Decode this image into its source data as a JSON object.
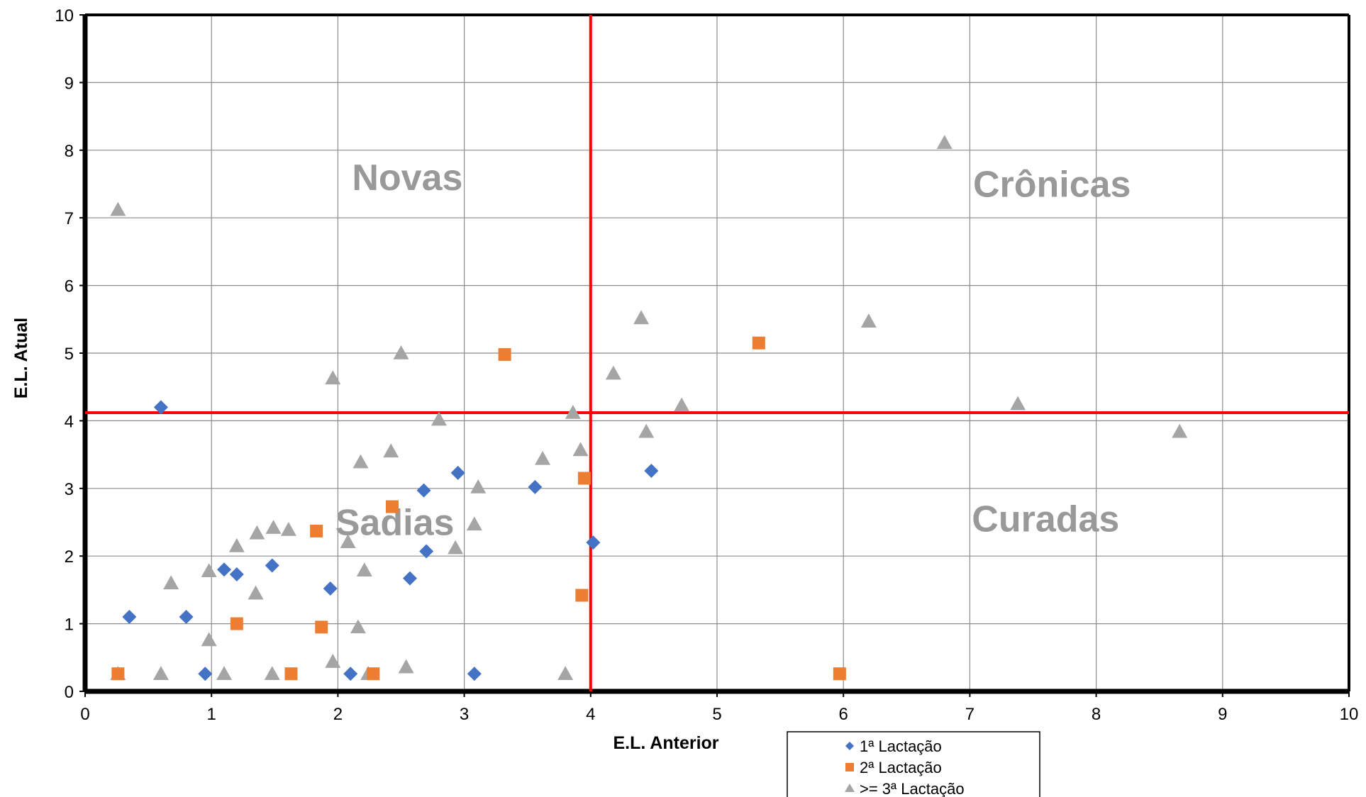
{
  "chart_data": {
    "type": "scatter",
    "title": "",
    "xlabel": "E.L. Anterior",
    "ylabel": "E.L. Atual",
    "xlim": [
      0,
      10
    ],
    "ylim": [
      0,
      10
    ],
    "x_ticks": [
      "0",
      "1",
      "2",
      "3",
      "4",
      "5",
      "6",
      "7",
      "8",
      "9",
      "10"
    ],
    "y_ticks": [
      "0",
      "1",
      "2",
      "3",
      "4",
      "5",
      "6",
      "7",
      "8",
      "9",
      "10"
    ],
    "grid": true,
    "legend_position": "bottom-center",
    "reference_lines": {
      "x": 4.0,
      "y": 4.12,
      "color": "#ff0000"
    },
    "quadrant_labels": [
      {
        "text": "Novas",
        "x": 2.55,
        "y": 7.6
      },
      {
        "text": "Crônicas",
        "x": 7.65,
        "y": 7.5
      },
      {
        "text": "Sadias",
        "x": 2.45,
        "y": 2.5
      },
      {
        "text": "Curadas",
        "x": 7.6,
        "y": 2.55
      }
    ],
    "series": [
      {
        "name": "1ª Lactação",
        "marker": "diamond",
        "color": "#4472c4",
        "points": [
          [
            0.35,
            1.1
          ],
          [
            0.6,
            4.2
          ],
          [
            0.8,
            1.1
          ],
          [
            0.95,
            0.26
          ],
          [
            1.1,
            1.8
          ],
          [
            1.2,
            1.73
          ],
          [
            1.48,
            1.86
          ],
          [
            1.94,
            1.52
          ],
          [
            2.1,
            0.26
          ],
          [
            2.57,
            1.67
          ],
          [
            2.7,
            2.07
          ],
          [
            2.68,
            2.97
          ],
          [
            2.95,
            3.23
          ],
          [
            3.08,
            0.26
          ],
          [
            3.56,
            3.02
          ],
          [
            4.02,
            2.2
          ],
          [
            4.48,
            3.26
          ]
        ]
      },
      {
        "name": "2ª Lactação",
        "marker": "square",
        "color": "#ed7d31",
        "points": [
          [
            0.26,
            0.26
          ],
          [
            1.2,
            1.0
          ],
          [
            1.63,
            0.26
          ],
          [
            1.83,
            2.37
          ],
          [
            1.87,
            0.95
          ],
          [
            2.28,
            0.26
          ],
          [
            2.43,
            2.73
          ],
          [
            3.32,
            4.98
          ],
          [
            3.93,
            1.42
          ],
          [
            3.95,
            3.15
          ],
          [
            5.33,
            5.15
          ],
          [
            5.97,
            0.26
          ]
        ]
      },
      {
        "name": ">= 3ª Lactação",
        "marker": "triangle",
        "color": "#a5a5a5",
        "points": [
          [
            0.26,
            0.26
          ],
          [
            0.26,
            7.12
          ],
          [
            0.6,
            0.26
          ],
          [
            0.68,
            1.6
          ],
          [
            0.98,
            0.76
          ],
          [
            0.98,
            1.78
          ],
          [
            1.1,
            0.26
          ],
          [
            1.2,
            2.15
          ],
          [
            1.35,
            1.45
          ],
          [
            1.36,
            2.34
          ],
          [
            1.48,
            0.26
          ],
          [
            1.49,
            2.42
          ],
          [
            1.61,
            2.39
          ],
          [
            1.96,
            0.44
          ],
          [
            1.96,
            4.63
          ],
          [
            2.08,
            2.21
          ],
          [
            2.16,
            0.95
          ],
          [
            2.18,
            3.39
          ],
          [
            2.21,
            1.79
          ],
          [
            2.24,
            0.26
          ],
          [
            2.42,
            3.55
          ],
          [
            2.5,
            5.0
          ],
          [
            2.54,
            0.36
          ],
          [
            2.8,
            4.02
          ],
          [
            2.93,
            2.12
          ],
          [
            3.08,
            2.47
          ],
          [
            3.11,
            3.02
          ],
          [
            3.62,
            3.44
          ],
          [
            3.8,
            0.26
          ],
          [
            3.86,
            4.12
          ],
          [
            3.92,
            3.57
          ],
          [
            4.18,
            4.7
          ],
          [
            4.4,
            5.52
          ],
          [
            4.44,
            3.84
          ],
          [
            4.72,
            4.23
          ],
          [
            6.2,
            5.47
          ],
          [
            6.8,
            8.11
          ],
          [
            7.38,
            4.25
          ],
          [
            8.66,
            3.84
          ]
        ]
      }
    ]
  }
}
